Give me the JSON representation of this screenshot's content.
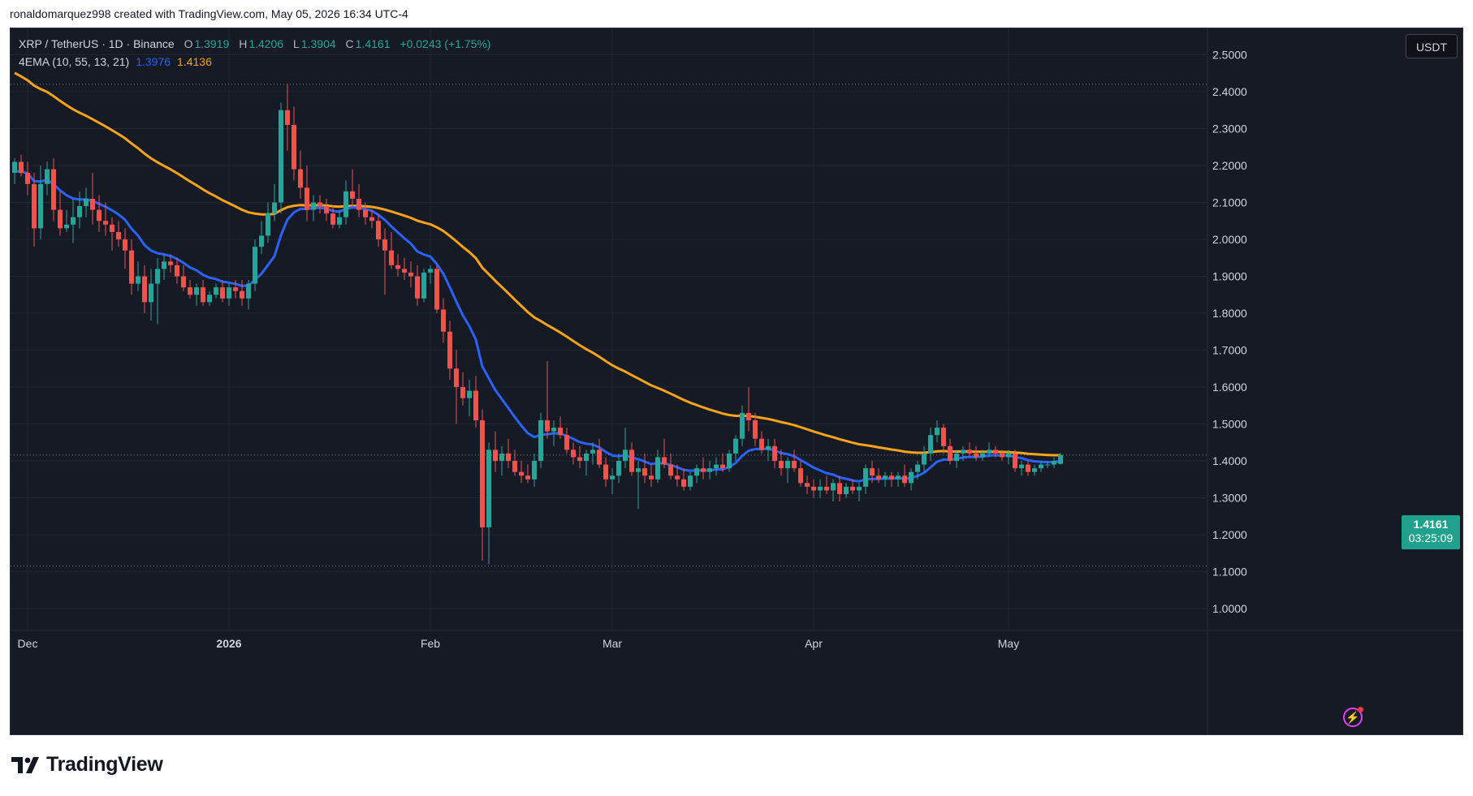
{
  "header": {
    "text": "ronaldomarquez998 created with TradingView.com, May 05, 2026 16:34 UTC-4"
  },
  "legend": {
    "symbol": "XRP / TetherUS · 1D · Binance",
    "o_label": "O",
    "o": "1.3919",
    "h_label": "H",
    "h": "1.4206",
    "l_label": "L",
    "l": "1.3904",
    "c_label": "C",
    "c": "1.4161",
    "change": "+0.0243 (+1.75%)",
    "ema_label": "4EMA (10, 55, 13, 21)",
    "ema_fast": "1.3976",
    "ema_slow": "1.4136"
  },
  "currency_badge": "USDT",
  "price_tag": {
    "price": "1.4161",
    "countdown": "03:25:09"
  },
  "brand": "TradingView",
  "colors": {
    "background": "#161a25",
    "up": "#26a69a",
    "down": "#ef5350",
    "ema_fast": "#2962ff",
    "ema_slow": "#f7a21b",
    "price_tag": "#1fa18d"
  },
  "chart_data": {
    "type": "candlestick",
    "ylim": [
      1.0,
      2.5
    ],
    "y_ticks": [
      "1.0000",
      "1.1000",
      "1.2000",
      "1.3000",
      "1.4000",
      "1.5000",
      "1.6000",
      "1.7000",
      "1.8000",
      "1.9000",
      "2.0000",
      "2.1000",
      "2.2000",
      "2.3000",
      "2.4000",
      "2.5000"
    ],
    "x_ticks": [
      {
        "label": "Dec",
        "date": "2025-12-01",
        "bold": false
      },
      {
        "label": "2026",
        "date": "2026-01-01",
        "bold": true
      },
      {
        "label": "Feb",
        "date": "2026-02-01",
        "bold": false
      },
      {
        "label": "Mar",
        "date": "2026-03-01",
        "bold": false
      },
      {
        "label": "Apr",
        "date": "2026-04-01",
        "bold": false
      },
      {
        "label": "May",
        "date": "2026-05-01",
        "bold": false
      }
    ],
    "hlines": [
      2.42,
      1.416,
      1.115
    ],
    "x_start": "2025-11-29",
    "ohlc": [
      [
        2.18,
        2.22,
        2.15,
        2.21
      ],
      [
        2.21,
        2.23,
        2.17,
        2.18
      ],
      [
        2.18,
        2.21,
        2.12,
        2.15
      ],
      [
        2.15,
        2.18,
        1.98,
        2.03
      ],
      [
        2.03,
        2.2,
        2.0,
        2.15
      ],
      [
        2.15,
        2.21,
        2.12,
        2.19
      ],
      [
        2.19,
        2.22,
        2.05,
        2.08
      ],
      [
        2.08,
        2.13,
        2.01,
        2.03
      ],
      [
        2.03,
        2.08,
        2.02,
        2.04
      ],
      [
        2.04,
        2.11,
        1.99,
        2.06
      ],
      [
        2.06,
        2.13,
        2.03,
        2.09
      ],
      [
        2.09,
        2.14,
        2.06,
        2.11
      ],
      [
        2.11,
        2.18,
        2.04,
        2.08
      ],
      [
        2.08,
        2.12,
        2.02,
        2.05
      ],
      [
        2.05,
        2.1,
        2.01,
        2.04
      ],
      [
        2.04,
        2.06,
        1.97,
        2.02
      ],
      [
        2.02,
        2.05,
        1.98,
        2.0
      ],
      [
        2.0,
        2.03,
        1.92,
        1.97
      ],
      [
        1.97,
        2.0,
        1.85,
        1.88
      ],
      [
        1.88,
        1.94,
        1.86,
        1.9
      ],
      [
        1.9,
        1.93,
        1.8,
        1.83
      ],
      [
        1.83,
        1.92,
        1.78,
        1.88
      ],
      [
        1.88,
        1.95,
        1.77,
        1.92
      ],
      [
        1.92,
        1.96,
        1.89,
        1.94
      ],
      [
        1.94,
        1.96,
        1.91,
        1.93
      ],
      [
        1.93,
        1.95,
        1.88,
        1.9
      ],
      [
        1.9,
        1.93,
        1.86,
        1.87
      ],
      [
        1.87,
        1.89,
        1.84,
        1.85
      ],
      [
        1.85,
        1.88,
        1.82,
        1.87
      ],
      [
        1.87,
        1.89,
        1.82,
        1.83
      ],
      [
        1.83,
        1.86,
        1.82,
        1.85
      ],
      [
        1.85,
        1.88,
        1.84,
        1.87
      ],
      [
        1.87,
        1.89,
        1.83,
        1.84
      ],
      [
        1.84,
        1.88,
        1.82,
        1.87
      ],
      [
        1.87,
        1.89,
        1.84,
        1.86
      ],
      [
        1.86,
        1.89,
        1.82,
        1.84
      ],
      [
        1.84,
        1.89,
        1.81,
        1.88
      ],
      [
        1.88,
        2.0,
        1.86,
        1.98
      ],
      [
        1.98,
        2.05,
        1.96,
        2.01
      ],
      [
        2.01,
        2.1,
        1.99,
        2.07
      ],
      [
        2.07,
        2.15,
        2.05,
        2.1
      ],
      [
        2.1,
        2.37,
        2.07,
        2.35
      ],
      [
        2.35,
        2.42,
        2.24,
        2.31
      ],
      [
        2.31,
        2.36,
        2.16,
        2.19
      ],
      [
        2.19,
        2.24,
        2.11,
        2.14
      ],
      [
        2.14,
        2.2,
        2.05,
        2.08
      ],
      [
        2.08,
        2.12,
        2.05,
        2.1
      ],
      [
        2.1,
        2.12,
        2.07,
        2.09
      ],
      [
        2.09,
        2.11,
        2.05,
        2.07
      ],
      [
        2.07,
        2.09,
        2.03,
        2.04
      ],
      [
        2.04,
        2.08,
        2.03,
        2.06
      ],
      [
        2.06,
        2.16,
        2.04,
        2.13
      ],
      [
        2.13,
        2.19,
        2.09,
        2.11
      ],
      [
        2.11,
        2.15,
        2.06,
        2.08
      ],
      [
        2.08,
        2.1,
        2.04,
        2.06
      ],
      [
        2.06,
        2.08,
        2.03,
        2.05
      ],
      [
        2.05,
        2.07,
        1.98,
        2.0
      ],
      [
        2.0,
        2.03,
        1.85,
        1.97
      ],
      [
        1.97,
        2.02,
        1.92,
        1.93
      ],
      [
        1.93,
        1.96,
        1.9,
        1.92
      ],
      [
        1.92,
        1.95,
        1.89,
        1.91
      ],
      [
        1.91,
        1.94,
        1.87,
        1.9
      ],
      [
        1.9,
        1.93,
        1.82,
        1.84
      ],
      [
        1.84,
        1.92,
        1.83,
        1.91
      ],
      [
        1.91,
        1.93,
        1.88,
        1.92
      ],
      [
        1.92,
        1.93,
        1.8,
        1.81
      ],
      [
        1.81,
        1.84,
        1.72,
        1.75
      ],
      [
        1.75,
        1.78,
        1.62,
        1.65
      ],
      [
        1.65,
        1.7,
        1.5,
        1.6
      ],
      [
        1.6,
        1.64,
        1.55,
        1.57
      ],
      [
        1.57,
        1.62,
        1.52,
        1.59
      ],
      [
        1.59,
        1.63,
        1.49,
        1.51
      ],
      [
        1.51,
        1.54,
        1.13,
        1.22
      ],
      [
        1.22,
        1.45,
        1.12,
        1.43
      ],
      [
        1.43,
        1.48,
        1.37,
        1.4
      ],
      [
        1.4,
        1.44,
        1.36,
        1.42
      ],
      [
        1.42,
        1.46,
        1.38,
        1.4
      ],
      [
        1.4,
        1.43,
        1.36,
        1.37
      ],
      [
        1.37,
        1.4,
        1.34,
        1.36
      ],
      [
        1.36,
        1.39,
        1.34,
        1.35
      ],
      [
        1.35,
        1.42,
        1.33,
        1.4
      ],
      [
        1.4,
        1.53,
        1.38,
        1.51
      ],
      [
        1.51,
        1.67,
        1.46,
        1.48
      ],
      [
        1.48,
        1.51,
        1.44,
        1.49
      ],
      [
        1.49,
        1.52,
        1.46,
        1.47
      ],
      [
        1.47,
        1.49,
        1.42,
        1.43
      ],
      [
        1.43,
        1.45,
        1.39,
        1.41
      ],
      [
        1.41,
        1.44,
        1.38,
        1.4
      ],
      [
        1.4,
        1.43,
        1.36,
        1.42
      ],
      [
        1.42,
        1.45,
        1.39,
        1.43
      ],
      [
        1.43,
        1.46,
        1.38,
        1.39
      ],
      [
        1.39,
        1.41,
        1.33,
        1.35
      ],
      [
        1.35,
        1.38,
        1.31,
        1.36
      ],
      [
        1.36,
        1.42,
        1.34,
        1.4
      ],
      [
        1.4,
        1.49,
        1.38,
        1.43
      ],
      [
        1.43,
        1.45,
        1.36,
        1.37
      ],
      [
        1.37,
        1.4,
        1.27,
        1.38
      ],
      [
        1.38,
        1.42,
        1.34,
        1.36
      ],
      [
        1.36,
        1.39,
        1.33,
        1.35
      ],
      [
        1.35,
        1.43,
        1.34,
        1.41
      ],
      [
        1.41,
        1.46,
        1.38,
        1.39
      ],
      [
        1.39,
        1.42,
        1.35,
        1.36
      ],
      [
        1.36,
        1.39,
        1.33,
        1.35
      ],
      [
        1.35,
        1.38,
        1.32,
        1.33
      ],
      [
        1.33,
        1.37,
        1.32,
        1.36
      ],
      [
        1.36,
        1.39,
        1.34,
        1.38
      ],
      [
        1.38,
        1.41,
        1.35,
        1.37
      ],
      [
        1.37,
        1.4,
        1.35,
        1.38
      ],
      [
        1.38,
        1.41,
        1.36,
        1.39
      ],
      [
        1.39,
        1.42,
        1.37,
        1.38
      ],
      [
        1.38,
        1.43,
        1.37,
        1.42
      ],
      [
        1.42,
        1.47,
        1.4,
        1.46
      ],
      [
        1.46,
        1.55,
        1.44,
        1.53
      ],
      [
        1.53,
        1.6,
        1.48,
        1.51
      ],
      [
        1.51,
        1.53,
        1.44,
        1.46
      ],
      [
        1.46,
        1.48,
        1.42,
        1.43
      ],
      [
        1.43,
        1.46,
        1.4,
        1.44
      ],
      [
        1.44,
        1.46,
        1.38,
        1.4
      ],
      [
        1.4,
        1.43,
        1.36,
        1.38
      ],
      [
        1.38,
        1.41,
        1.34,
        1.4
      ],
      [
        1.4,
        1.43,
        1.37,
        1.38
      ],
      [
        1.38,
        1.4,
        1.33,
        1.34
      ],
      [
        1.34,
        1.36,
        1.31,
        1.33
      ],
      [
        1.33,
        1.35,
        1.3,
        1.32
      ],
      [
        1.32,
        1.35,
        1.3,
        1.33
      ],
      [
        1.33,
        1.36,
        1.31,
        1.32
      ],
      [
        1.32,
        1.35,
        1.29,
        1.34
      ],
      [
        1.34,
        1.36,
        1.29,
        1.31
      ],
      [
        1.31,
        1.34,
        1.3,
        1.33
      ],
      [
        1.33,
        1.35,
        1.31,
        1.32
      ],
      [
        1.32,
        1.34,
        1.29,
        1.33
      ],
      [
        1.33,
        1.39,
        1.31,
        1.38
      ],
      [
        1.38,
        1.4,
        1.34,
        1.36
      ],
      [
        1.36,
        1.38,
        1.34,
        1.35
      ],
      [
        1.35,
        1.37,
        1.33,
        1.36
      ],
      [
        1.36,
        1.37,
        1.33,
        1.35
      ],
      [
        1.35,
        1.37,
        1.33,
        1.36
      ],
      [
        1.36,
        1.39,
        1.33,
        1.34
      ],
      [
        1.34,
        1.38,
        1.32,
        1.37
      ],
      [
        1.37,
        1.4,
        1.35,
        1.39
      ],
      [
        1.39,
        1.44,
        1.37,
        1.42
      ],
      [
        1.42,
        1.49,
        1.4,
        1.47
      ],
      [
        1.47,
        1.51,
        1.45,
        1.49
      ],
      [
        1.49,
        1.5,
        1.42,
        1.44
      ],
      [
        1.44,
        1.46,
        1.39,
        1.4
      ],
      [
        1.4,
        1.43,
        1.38,
        1.42
      ],
      [
        1.42,
        1.44,
        1.4,
        1.43
      ],
      [
        1.43,
        1.45,
        1.41,
        1.42
      ],
      [
        1.42,
        1.44,
        1.4,
        1.41
      ],
      [
        1.41,
        1.43,
        1.4,
        1.42
      ],
      [
        1.42,
        1.45,
        1.41,
        1.43
      ],
      [
        1.43,
        1.44,
        1.41,
        1.42
      ],
      [
        1.42,
        1.43,
        1.4,
        1.41
      ],
      [
        1.41,
        1.43,
        1.39,
        1.42
      ],
      [
        1.42,
        1.43,
        1.37,
        1.38
      ],
      [
        1.38,
        1.4,
        1.36,
        1.39
      ],
      [
        1.39,
        1.4,
        1.36,
        1.37
      ],
      [
        1.37,
        1.39,
        1.36,
        1.38
      ],
      [
        1.38,
        1.4,
        1.37,
        1.39
      ],
      [
        1.39,
        1.4,
        1.38,
        1.39
      ],
      [
        1.39,
        1.41,
        1.38,
        1.4
      ],
      [
        1.3919,
        1.4206,
        1.3904,
        1.4161
      ]
    ],
    "ema_fast_period": 13,
    "ema_slow_period": 55
  }
}
